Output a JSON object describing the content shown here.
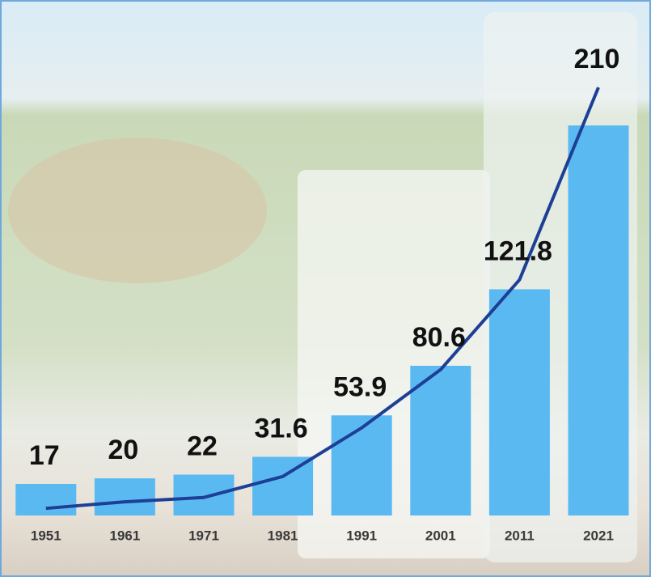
{
  "chart_data": {
    "type": "bar",
    "categories": [
      "1951",
      "1961",
      "1971",
      "1981",
      "1991",
      "2001",
      "2011",
      "2021"
    ],
    "values": [
      17,
      20,
      22,
      31.6,
      53.9,
      80.6,
      121.8,
      210
    ],
    "color": "#5bb9f2",
    "line_color": "#1d3f96"
  }
}
